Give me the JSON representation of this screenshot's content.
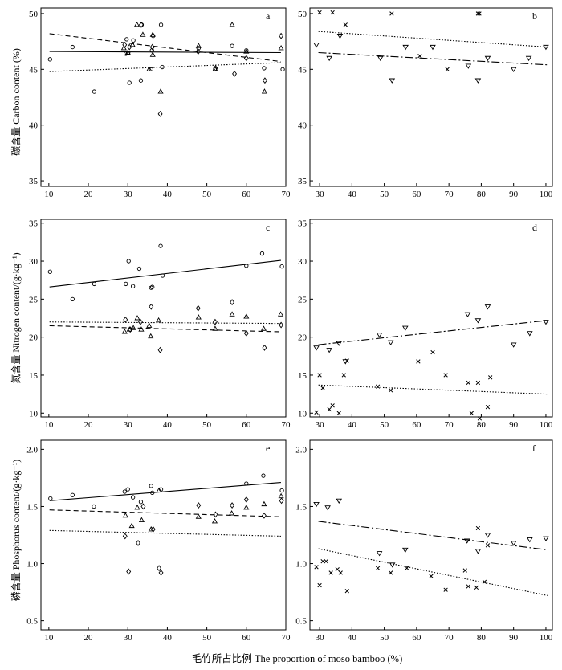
{
  "figure": {
    "xlabel": "毛竹所占比例 The proportion of moso bamboo (%)"
  },
  "rows": [
    {
      "ylabel": "碳含量 Carbon content (%)"
    },
    {
      "ylabel": "氮含量 Nitrogen content/(g·kg⁻¹)"
    },
    {
      "ylabel": "磷含量 Phosphorus content/(g·kg⁻¹)"
    }
  ],
  "chart_data": [
    {
      "type": "scatter",
      "letter": "a",
      "xlim": [
        8,
        70
      ],
      "ylim": [
        34.5,
        50.5
      ],
      "xticks": [
        10,
        20,
        30,
        40,
        50,
        60,
        70
      ],
      "yticks": [
        35,
        40,
        45,
        50
      ],
      "ytick_decimals": 0,
      "series": [
        {
          "name": "circle",
          "marker": "circle",
          "points": [
            [
              10.3,
              45.9
            ],
            [
              16,
              47
            ],
            [
              21.5,
              43
            ],
            [
              29.5,
              46.4
            ],
            [
              29.7,
              47.7
            ],
            [
              30.1,
              46.5
            ],
            [
              30.4,
              43.8
            ],
            [
              31.4,
              47.6
            ],
            [
              33.3,
              44
            ],
            [
              33.5,
              49
            ],
            [
              35.9,
              45
            ],
            [
              36.1,
              46.7
            ],
            [
              36.4,
              48
            ],
            [
              38.4,
              49
            ],
            [
              38.7,
              45.2
            ],
            [
              47.9,
              46.9
            ],
            [
              52.1,
              45
            ],
            [
              56.4,
              47.1
            ],
            [
              60,
              46.7
            ],
            [
              64.5,
              45.1
            ],
            [
              69.2,
              45
            ]
          ],
          "fit": [
            46.6,
            46.5
          ],
          "line": "solid"
        },
        {
          "name": "triangle",
          "marker": "triangle",
          "points": [
            [
              29,
              46.9
            ],
            [
              30,
              46.5
            ],
            [
              31.2,
              47.2
            ],
            [
              32.3,
              49
            ],
            [
              33.8,
              48.1
            ],
            [
              35.4,
              45
            ],
            [
              36.3,
              46.3
            ],
            [
              36.3,
              48.1
            ],
            [
              38.3,
              43
            ],
            [
              47.9,
              47.1
            ],
            [
              52.1,
              45
            ],
            [
              56.4,
              49
            ],
            [
              60,
              46.6
            ],
            [
              64.6,
              43
            ],
            [
              68.8,
              46.9
            ]
          ],
          "fit": [
            44.8,
            45.6
          ],
          "line": "dotted"
        },
        {
          "name": "diamond",
          "marker": "diamond",
          "points": [
            [
              29.2,
              47.2
            ],
            [
              30.4,
              47
            ],
            [
              33.4,
              49
            ],
            [
              36.2,
              47
            ],
            [
              38.2,
              41
            ],
            [
              47.8,
              46.6
            ],
            [
              52.2,
              45.1
            ],
            [
              57,
              44.6
            ],
            [
              60,
              46
            ],
            [
              64.7,
              44
            ],
            [
              68.8,
              48
            ]
          ],
          "fit": [
            48.2,
            45.7
          ],
          "line": "dashed"
        }
      ]
    },
    {
      "type": "scatter",
      "letter": "b",
      "xlim": [
        27,
        102
      ],
      "ylim": [
        34.5,
        50.5
      ],
      "xticks": [
        30,
        40,
        50,
        60,
        70,
        80,
        90,
        100
      ],
      "yticks": [
        35,
        40,
        45,
        50
      ],
      "ytick_decimals": 0,
      "series": [
        {
          "name": "cross",
          "marker": "cross",
          "points": [
            [
              30,
              50.1
            ],
            [
              34,
              50.1
            ],
            [
              38,
              49
            ],
            [
              52.3,
              50
            ],
            [
              61,
              46.2
            ],
            [
              69.5,
              45
            ],
            [
              79,
              50
            ],
            [
              79.4,
              50
            ]
          ],
          "fit": [
            46.5,
            45.4
          ],
          "line": "dashdot"
        },
        {
          "name": "tri_down",
          "marker": "tri_down",
          "points": [
            [
              29,
              47.2
            ],
            [
              33,
              46
            ],
            [
              36.3,
              48
            ],
            [
              48.8,
              46
            ],
            [
              52.4,
              44
            ],
            [
              56.6,
              47
            ],
            [
              65,
              47
            ],
            [
              76,
              45.3
            ],
            [
              79,
              44
            ],
            [
              82,
              46
            ],
            [
              90,
              45
            ],
            [
              94.7,
              46
            ],
            [
              100,
              47
            ]
          ],
          "fit": [
            48.4,
            47
          ],
          "line": "dotted"
        }
      ]
    },
    {
      "type": "scatter",
      "letter": "c",
      "xlim": [
        8,
        70
      ],
      "ylim": [
        9.5,
        35.5
      ],
      "xticks": [
        10,
        20,
        30,
        40,
        50,
        60,
        70
      ],
      "yticks": [
        10,
        15,
        20,
        25,
        30,
        35
      ],
      "ytick_decimals": 0,
      "series": [
        {
          "name": "circle",
          "marker": "circle",
          "points": [
            [
              10.3,
              28.6
            ],
            [
              16,
              25
            ],
            [
              21.5,
              27
            ],
            [
              29.5,
              27
            ],
            [
              30.2,
              30
            ],
            [
              31.3,
              26.7
            ],
            [
              32.9,
              29
            ],
            [
              35.9,
              26.5
            ],
            [
              36.2,
              26.6
            ],
            [
              38.3,
              32
            ],
            [
              38.8,
              28.1
            ],
            [
              60,
              29.4
            ],
            [
              64,
              31
            ],
            [
              69,
              29.3
            ]
          ],
          "fit": [
            26.6,
            30.1
          ],
          "line": "solid"
        },
        {
          "name": "triangle",
          "marker": "triangle",
          "points": [
            [
              29.2,
              20.7
            ],
            [
              30.4,
              21
            ],
            [
              31.4,
              21.2
            ],
            [
              32.4,
              22.5
            ],
            [
              33.4,
              21
            ],
            [
              35.4,
              21.5
            ],
            [
              35.8,
              20.1
            ],
            [
              37.8,
              22.2
            ],
            [
              47.9,
              22.6
            ],
            [
              52.1,
              21.1
            ],
            [
              56.4,
              23
            ],
            [
              60,
              22.7
            ],
            [
              64.4,
              21.1
            ],
            [
              68.7,
              23
            ]
          ],
          "fit": [
            22,
            21.8
          ],
          "line": "dotted"
        },
        {
          "name": "diamond",
          "marker": "diamond",
          "points": [
            [
              29.4,
              22.3
            ],
            [
              30.6,
              21
            ],
            [
              33.2,
              22
            ],
            [
              35.9,
              24
            ],
            [
              38.2,
              18.3
            ],
            [
              47.8,
              23.8
            ],
            [
              52.1,
              22
            ],
            [
              56.4,
              24.6
            ],
            [
              60,
              20.5
            ],
            [
              64.6,
              18.6
            ],
            [
              68.8,
              21.6
            ]
          ],
          "fit": [
            21.5,
            20.7
          ],
          "line": "dashed"
        }
      ]
    },
    {
      "type": "scatter",
      "letter": "d",
      "xlim": [
        27,
        102
      ],
      "ylim": [
        9.5,
        35.5
      ],
      "xticks": [
        30,
        40,
        50,
        60,
        70,
        80,
        90,
        100
      ],
      "yticks": [
        10,
        15,
        20,
        25,
        30,
        35
      ],
      "ytick_decimals": 0,
      "series": [
        {
          "name": "cross",
          "marker": "cross",
          "points": [
            [
              29,
              10.1
            ],
            [
              30,
              15
            ],
            [
              31,
              13.3
            ],
            [
              33,
              10.5
            ],
            [
              34,
              11
            ],
            [
              36,
              10
            ],
            [
              37.5,
              15
            ],
            [
              38.5,
              16.9
            ],
            [
              48,
              13.5
            ],
            [
              52,
              13
            ],
            [
              60.5,
              16.8
            ],
            [
              65,
              18
            ],
            [
              69,
              15
            ],
            [
              76,
              14
            ],
            [
              77,
              10
            ],
            [
              79,
              14
            ],
            [
              79.5,
              9.3
            ],
            [
              82,
              10.8
            ],
            [
              82.8,
              14.7
            ]
          ],
          "fit": [
            13.7,
            12.5
          ],
          "line": "dotted"
        },
        {
          "name": "tri_down",
          "marker": "tri_down",
          "points": [
            [
              29,
              18.6
            ],
            [
              33,
              18.3
            ],
            [
              36,
              19.2
            ],
            [
              38,
              16.8
            ],
            [
              48.5,
              20.3
            ],
            [
              52,
              19.3
            ],
            [
              56.5,
              21.2
            ],
            [
              75.8,
              23
            ],
            [
              79,
              22.2
            ],
            [
              82,
              24
            ],
            [
              90,
              19
            ],
            [
              95,
              20.5
            ],
            [
              100,
              22
            ]
          ],
          "fit": [
            19,
            22.2
          ],
          "line": "dashdot"
        }
      ]
    },
    {
      "type": "scatter",
      "letter": "e",
      "xlim": [
        8,
        70
      ],
      "ylim": [
        0.42,
        2.08
      ],
      "xticks": [
        10,
        20,
        30,
        40,
        50,
        60,
        70
      ],
      "yticks": [
        0.5,
        1.0,
        1.5,
        2.0
      ],
      "ytick_decimals": 1,
      "series": [
        {
          "name": "circle",
          "marker": "circle",
          "points": [
            [
              10.4,
              1.57
            ],
            [
              16,
              1.6
            ],
            [
              21.4,
              1.5
            ],
            [
              29.2,
              1.63
            ],
            [
              30,
              1.65
            ],
            [
              31.3,
              1.58
            ],
            [
              33.3,
              1.54
            ],
            [
              35.9,
              1.68
            ],
            [
              36.2,
              1.62
            ],
            [
              38.4,
              1.65
            ],
            [
              60,
              1.7
            ],
            [
              64.3,
              1.77
            ],
            [
              69,
              1.64
            ]
          ],
          "fit": [
            1.55,
            1.71
          ],
          "line": "solid"
        },
        {
          "name": "triangle",
          "marker": "triangle",
          "points": [
            [
              29.4,
              1.42
            ],
            [
              31,
              1.33
            ],
            [
              32.4,
              1.49
            ],
            [
              33.5,
              1.38
            ],
            [
              35.9,
              1.3
            ],
            [
              37.9,
              1.64
            ],
            [
              47.9,
              1.41
            ],
            [
              52,
              1.37
            ],
            [
              56.3,
              1.44
            ],
            [
              60,
              1.49
            ],
            [
              64.5,
              1.52
            ],
            [
              68.8,
              1.59
            ]
          ],
          "fit": [
            1.29,
            1.24
          ],
          "line": "dotted"
        },
        {
          "name": "diamond",
          "marker": "diamond",
          "points": [
            [
              29.3,
              1.24
            ],
            [
              30.2,
              0.93
            ],
            [
              32.6,
              1.18
            ],
            [
              33.9,
              1.5
            ],
            [
              36.4,
              1.3
            ],
            [
              37.9,
              0.96
            ],
            [
              38.4,
              0.92
            ],
            [
              47.9,
              1.51
            ],
            [
              52.2,
              1.43
            ],
            [
              56.4,
              1.51
            ],
            [
              60,
              1.56
            ],
            [
              64.5,
              1.42
            ],
            [
              68.9,
              1.55
            ]
          ],
          "fit": [
            1.47,
            1.41
          ],
          "line": "dashed"
        }
      ]
    },
    {
      "type": "scatter",
      "letter": "f",
      "xlim": [
        27,
        102
      ],
      "ylim": [
        0.42,
        2.08
      ],
      "xticks": [
        30,
        40,
        50,
        60,
        70,
        80,
        90,
        100
      ],
      "yticks": [
        0.5,
        1.0,
        1.5,
        2.0
      ],
      "ytick_decimals": 1,
      "series": [
        {
          "name": "cross",
          "marker": "cross",
          "points": [
            [
              29,
              0.97
            ],
            [
              30,
              0.81
            ],
            [
              31,
              1.02
            ],
            [
              32,
              1.02
            ],
            [
              33.5,
              0.92
            ],
            [
              35.5,
              0.95
            ],
            [
              36.5,
              0.92
            ],
            [
              38.5,
              0.76
            ],
            [
              48,
              0.96
            ],
            [
              52,
              0.92
            ],
            [
              57,
              0.96
            ],
            [
              64.5,
              0.89
            ],
            [
              69,
              0.77
            ],
            [
              75,
              0.94
            ],
            [
              76,
              0.8
            ],
            [
              78.5,
              0.79
            ],
            [
              79,
              1.31
            ],
            [
              81,
              0.84
            ],
            [
              82,
              1.16
            ]
          ],
          "fit": [
            1.13,
            0.72
          ],
          "line": "dotted"
        },
        {
          "name": "tri_down",
          "marker": "tri_down",
          "points": [
            [
              29,
              1.52
            ],
            [
              32.5,
              1.49
            ],
            [
              36,
              1.55
            ],
            [
              48.5,
              1.09
            ],
            [
              52.5,
              0.99
            ],
            [
              56.5,
              1.12
            ],
            [
              75.6,
              1.2
            ],
            [
              79,
              1.11
            ],
            [
              82,
              1.25
            ],
            [
              90,
              1.18
            ],
            [
              95,
              1.21
            ],
            [
              100,
              1.22
            ]
          ],
          "fit": [
            1.37,
            1.12
          ],
          "line": "dashdot"
        }
      ]
    }
  ]
}
